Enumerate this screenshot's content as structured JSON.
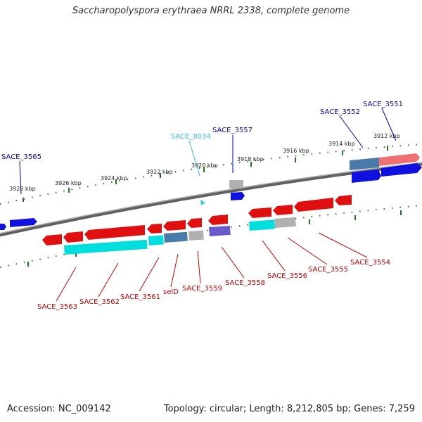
{
  "title": "Saccharopolyspora erythraea NRRL 2338, complete genome",
  "accession": "Accession: NC_009142",
  "summary": "Topology: circular; Length: 8,212,805 bp; Genes: 7,259",
  "colors": {
    "backbone": "#808080",
    "tick": "#1a7a1a",
    "blue_label": "#0000cc",
    "cyan_label": "#33bbdd",
    "red_label": "#cc0000",
    "red_feature": "#e01010",
    "blue_feature": "#1010e0",
    "cyan_feature": "#00dddd",
    "grey_feature": "#b0b0b0",
    "steelblue_feature": "#4a7aaa",
    "pink_feature": "#ee7070",
    "violet_feature": "#6a5acd",
    "skyblue_feature": "#33ccee"
  },
  "scale_labels": [
    "3928 kbp",
    "3926 kbp",
    "3924 kbp",
    "3922 kbp",
    "3920 kbp",
    "3918 kbp",
    "3916 kbp",
    "3914 kbp",
    "3912 kbp"
  ],
  "top_labels": [
    "SACE_3565",
    "SACE_8034",
    "SACE_3557",
    "SACE_3552",
    "SACE_3551"
  ],
  "bottom_labels": [
    "SACE_3563",
    "SACE_3562",
    "SACE_3561",
    "selD",
    "SACE_3559",
    "SACE_3558",
    "SACE_3556",
    "SACE_3555",
    "SACE_3554"
  ]
}
